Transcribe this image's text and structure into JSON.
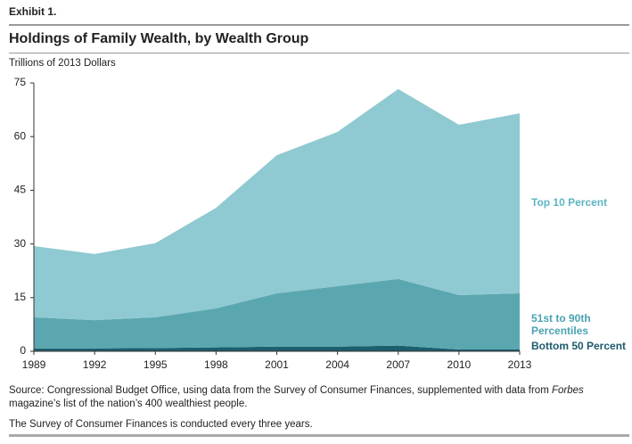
{
  "exhibit": "Exhibit 1.",
  "chart_data": {
    "type": "area",
    "stacked": true,
    "title": "Holdings of Family Wealth, by Wealth Group",
    "y_label": "Trillions of 2013 Dollars",
    "x": [
      1989,
      1992,
      1995,
      1998,
      2001,
      2004,
      2007,
      2010,
      2013
    ],
    "xlim": [
      1989,
      2013
    ],
    "xticks": [
      1989,
      1992,
      1995,
      1998,
      2001,
      2004,
      2007,
      2010,
      2013
    ],
    "ylim": [
      0,
      75
    ],
    "yticks": [
      0,
      15,
      30,
      45,
      60,
      75
    ],
    "series": [
      {
        "name": "Bottom 50 Percent",
        "color": "#1c5f6f",
        "label_color": "#1c5a6b",
        "values": [
          0.8,
          0.8,
          0.9,
          1.1,
          1.3,
          1.3,
          1.6,
          0.5,
          0.5
        ]
      },
      {
        "name": "51st to 90th Percentiles",
        "color": "#5ba7b0",
        "label_color": "#4aa3b3",
        "values": [
          8.7,
          7.9,
          8.6,
          10.9,
          14.9,
          16.9,
          18.6,
          15.2,
          15.7
        ]
      },
      {
        "name": "Top 10 Percent",
        "color": "#8fc9d1",
        "label_color": "#5fb5c4",
        "values": [
          19.9,
          18.5,
          20.7,
          28.1,
          38.6,
          43.1,
          53.1,
          47.6,
          50.3
        ]
      }
    ]
  },
  "source": {
    "prefix": "Source: Congressional Budget Office, using data from the Survey of Consumer Finances, supplemented with data from ",
    "italic": "Forbes",
    "suffix": " magazine’s list of the nation’s 400 wealthiest people."
  },
  "note": "The Survey of Consumer Finances is conducted every three years."
}
